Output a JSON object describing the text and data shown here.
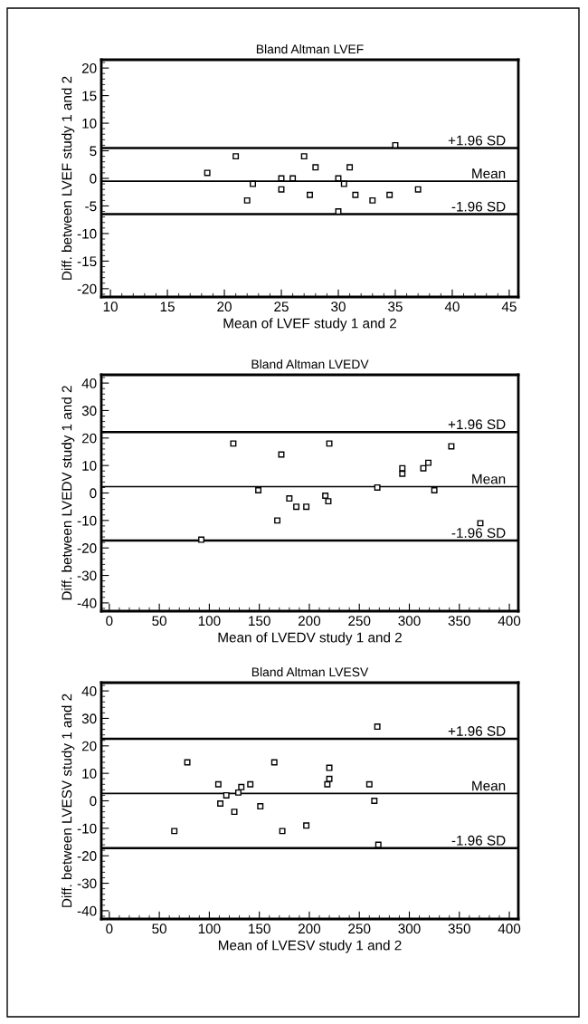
{
  "chart_data": [
    {
      "type": "scatter",
      "title": "Bland Altman LVEF",
      "xlabel": "Mean of LVEF study 1 and 2",
      "ylabel": "Diff. between LVEF study 1 and 2",
      "marker": "square",
      "color": "#000000",
      "x": [
        18.5,
        21,
        22,
        22.5,
        25,
        25,
        26,
        27,
        27.5,
        28,
        30,
        30,
        30.5,
        31,
        31.5,
        33,
        34.5,
        35,
        37
      ],
      "values": [
        1,
        4,
        -4,
        -1,
        0,
        -2,
        0,
        4,
        -3,
        2,
        0,
        -6,
        -1,
        2,
        -3,
        -4,
        -3,
        6,
        -2
      ],
      "xlim": [
        9.2,
        45.8
      ],
      "xticks": [
        10,
        15,
        20,
        25,
        30,
        35,
        40,
        45
      ],
      "ylim": [
        -21.5,
        21.5
      ],
      "yticks": [
        -20,
        -15,
        -10,
        -5,
        0,
        5,
        10,
        15,
        20
      ],
      "ref_lines": [
        {
          "axis": "y",
          "value": 5.5,
          "label": "+1.96 SD"
        },
        {
          "axis": "y",
          "value": -0.5,
          "label": "Mean"
        },
        {
          "axis": "y",
          "value": -6.5,
          "label": "-1.96 SD"
        }
      ]
    },
    {
      "type": "scatter",
      "title": "Bland Altman LVEDV",
      "xlabel": "Mean of LVEDV study 1 and 2",
      "ylabel": "Diff. between LVEDV study 1 and 2",
      "marker": "square",
      "color": "#000000",
      "x": [
        92,
        124,
        149,
        168,
        172,
        180,
        187,
        197,
        216,
        219,
        220,
        268,
        293,
        293,
        314,
        319,
        325,
        342,
        371
      ],
      "values": [
        -17,
        18,
        1,
        -10,
        14,
        -2,
        -5,
        -5,
        -1,
        -3,
        18,
        2,
        9,
        7,
        9,
        11,
        1,
        17,
        -11
      ],
      "xlim": [
        -8,
        409
      ],
      "xticks": [
        0,
        50,
        100,
        150,
        200,
        250,
        300,
        350,
        400
      ],
      "ylim": [
        -43,
        43
      ],
      "yticks": [
        -40,
        -30,
        -20,
        -10,
        0,
        10,
        20,
        30,
        40
      ],
      "ref_lines": [
        {
          "axis": "y",
          "value": 22.2,
          "label": "+1.96 SD"
        },
        {
          "axis": "y",
          "value": 2.3,
          "label": "Mean"
        },
        {
          "axis": "y",
          "value": -17.3,
          "label": "-1.96 SD"
        }
      ]
    },
    {
      "type": "scatter",
      "title": "Bland Altman LVESV",
      "xlabel": "Mean of LVESV study 1 and 2",
      "ylabel": "Diff. between LVESV study 1 and 2",
      "marker": "square",
      "color": "#000000",
      "x": [
        65,
        78,
        109,
        111,
        117,
        125,
        129,
        132,
        141,
        151,
        165,
        173,
        197,
        218,
        220,
        220,
        260,
        265,
        268,
        269
      ],
      "values": [
        -11,
        14,
        6,
        -1,
        2,
        -4,
        3,
        5,
        6,
        -2,
        14,
        -11,
        -9,
        6,
        8,
        12,
        6,
        0,
        27,
        -16
      ],
      "xlim": [
        -8,
        409
      ],
      "xticks": [
        0,
        50,
        100,
        150,
        200,
        250,
        300,
        350,
        400
      ],
      "ylim": [
        -43,
        43
      ],
      "yticks": [
        -40,
        -30,
        -20,
        -10,
        0,
        10,
        20,
        30,
        40
      ],
      "ref_lines": [
        {
          "axis": "y",
          "value": 22.6,
          "label": "+1.96 SD"
        },
        {
          "axis": "y",
          "value": 2.7,
          "label": "Mean"
        },
        {
          "axis": "y",
          "value": -17.2,
          "label": "-1.96 SD"
        }
      ]
    }
  ]
}
